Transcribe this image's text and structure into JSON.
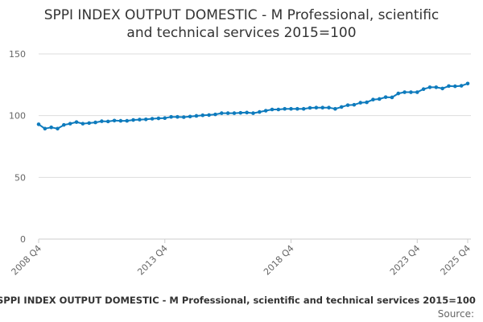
{
  "chart_data": {
    "type": "line",
    "title_line1": "SPPI INDEX OUTPUT DOMESTIC - M Professional, scientific",
    "title_line2": "and technical services 2015=100",
    "xlabel": "",
    "ylabel": "",
    "ylim": [
      0,
      150
    ],
    "yticks": [
      "0",
      "50",
      "100",
      "150"
    ],
    "xtick_labels": [
      "2008 Q4",
      "2013 Q4",
      "2018 Q4",
      "2023 Q4",
      "2025 Q4"
    ],
    "grid": true,
    "series": [
      {
        "color": "#0e7bbd",
        "x": [
          "2008 Q4",
          "2009 Q1",
          "2009 Q2",
          "2009 Q3",
          "2009 Q4",
          "2010 Q1",
          "2010 Q2",
          "2010 Q3",
          "2010 Q4",
          "2011 Q1",
          "2011 Q2",
          "2011 Q3",
          "2011 Q4",
          "2012 Q1",
          "2012 Q2",
          "2012 Q3",
          "2012 Q4",
          "2013 Q1",
          "2013 Q2",
          "2013 Q3",
          "2013 Q4",
          "2014 Q1",
          "2014 Q2",
          "2014 Q3",
          "2014 Q4",
          "2015 Q1",
          "2015 Q2",
          "2015 Q3",
          "2015 Q4",
          "2016 Q1",
          "2016 Q2",
          "2016 Q3",
          "2016 Q4",
          "2017 Q1",
          "2017 Q2",
          "2017 Q3",
          "2017 Q4",
          "2018 Q1",
          "2018 Q2",
          "2018 Q3",
          "2018 Q4",
          "2019 Q1",
          "2019 Q2",
          "2019 Q3",
          "2019 Q4",
          "2020 Q1",
          "2020 Q2",
          "2020 Q3",
          "2020 Q4",
          "2021 Q1",
          "2021 Q2",
          "2021 Q3",
          "2021 Q4",
          "2022 Q1",
          "2022 Q2",
          "2022 Q3",
          "2022 Q4",
          "2023 Q1",
          "2023 Q2",
          "2023 Q3",
          "2023 Q4",
          "2024 Q1",
          "2024 Q2",
          "2024 Q3",
          "2024 Q4",
          "2025 Q1",
          "2025 Q2",
          "2025 Q3",
          "2025 Q4"
        ],
        "values": [
          93,
          89.5,
          90.5,
          89.5,
          92.5,
          93.5,
          94.8,
          93.5,
          94,
          94.5,
          95.5,
          95.3,
          96,
          95.8,
          95.8,
          96.5,
          96.8,
          97,
          97.5,
          97.8,
          98,
          99,
          99,
          98.8,
          99.3,
          99.8,
          100.3,
          100.5,
          101,
          102,
          102,
          102,
          102.3,
          102.5,
          102,
          103,
          104,
          105,
          105,
          105.5,
          105.5,
          105.5,
          105.5,
          106.3,
          106.5,
          106.5,
          106.5,
          105.5,
          107,
          108.5,
          108.8,
          110.5,
          110.8,
          113,
          113.5,
          115,
          114.8,
          118,
          119,
          119,
          119,
          121.5,
          123,
          123,
          122,
          124,
          123.8,
          124.2,
          126
        ]
      }
    ]
  },
  "footer": {
    "caption": "SPPI INDEX OUTPUT DOMESTIC - M Professional, scientific and technical services 2015=100",
    "source_label": "Source:"
  },
  "colors": {
    "line": "#0e7bbd",
    "grid": "#dddddd",
    "axis_text": "#666666"
  }
}
